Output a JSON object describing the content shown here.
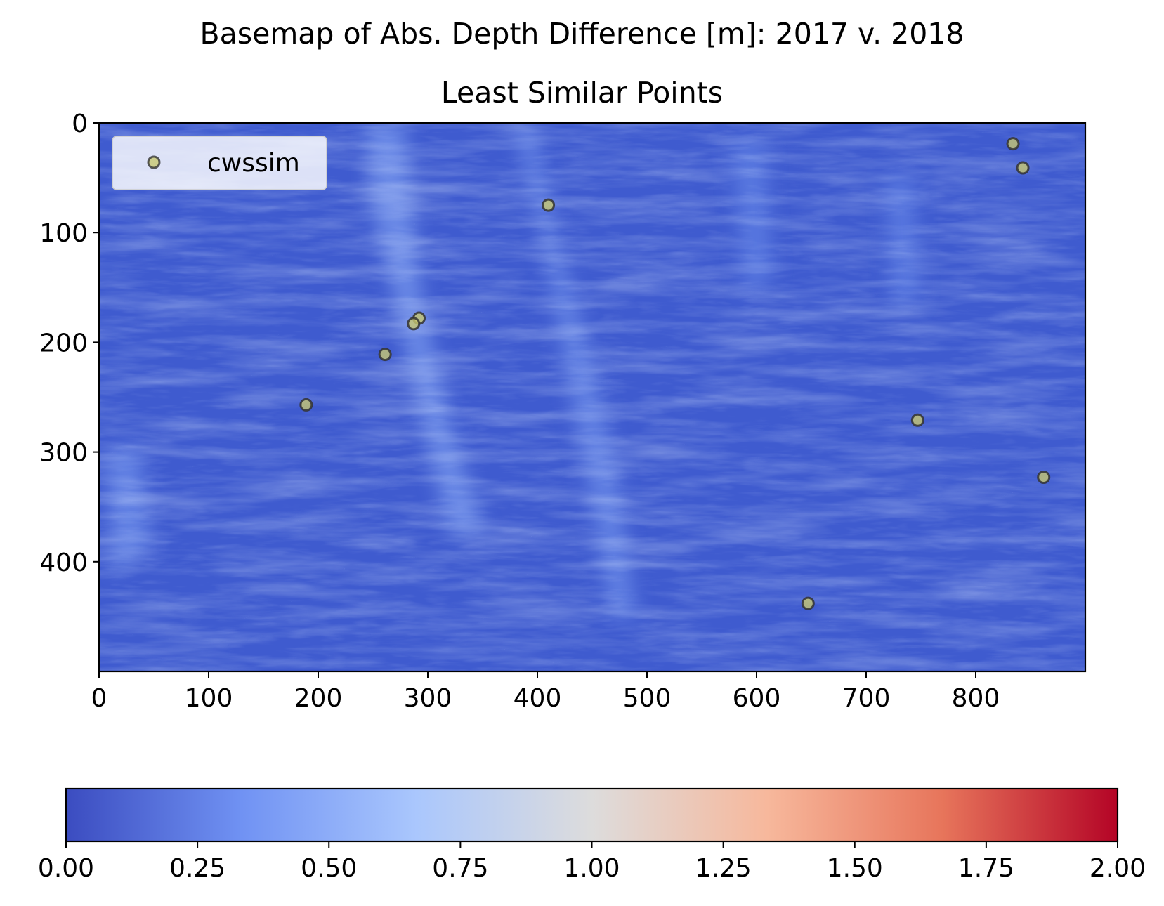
{
  "chart_data": {
    "type": "scatter",
    "title": "Basemap of Abs. Depth Difference [m]: 2017 v. 2018",
    "subtitle": "Least Similar Points",
    "background": "basemap raster of absolute depth difference (values mostly 0.0–0.5)",
    "xlim": [
      0,
      900
    ],
    "ylim": [
      500,
      0
    ],
    "xticks": [
      0,
      100,
      200,
      300,
      400,
      500,
      600,
      700,
      800
    ],
    "yticks": [
      0,
      100,
      200,
      300,
      400
    ],
    "series": [
      {
        "name": "cwssim",
        "marker_color": "#c8c870",
        "edge_color": "#333333",
        "points": [
          {
            "x": 834,
            "y": 19
          },
          {
            "x": 843,
            "y": 41
          },
          {
            "x": 410,
            "y": 75
          },
          {
            "x": 292,
            "y": 178
          },
          {
            "x": 287,
            "y": 183
          },
          {
            "x": 261,
            "y": 211
          },
          {
            "x": 189,
            "y": 257
          },
          {
            "x": 747,
            "y": 271
          },
          {
            "x": 862,
            "y": 323
          },
          {
            "x": 647,
            "y": 438
          }
        ]
      }
    ],
    "legend": {
      "position": "top-left",
      "entries": [
        "cwssim"
      ]
    },
    "colorbar": {
      "colormap": "coolwarm",
      "range": [
        0.0,
        2.0
      ],
      "ticks": [
        "0.00",
        "0.25",
        "0.50",
        "0.75",
        "1.00",
        "1.25",
        "1.50",
        "1.75",
        "2.00"
      ],
      "colors": [
        "#3b4cc0",
        "#7092f3",
        "#aac7fd",
        "#dddcdc",
        "#f7b89c",
        "#e7755b",
        "#b40426"
      ]
    }
  }
}
